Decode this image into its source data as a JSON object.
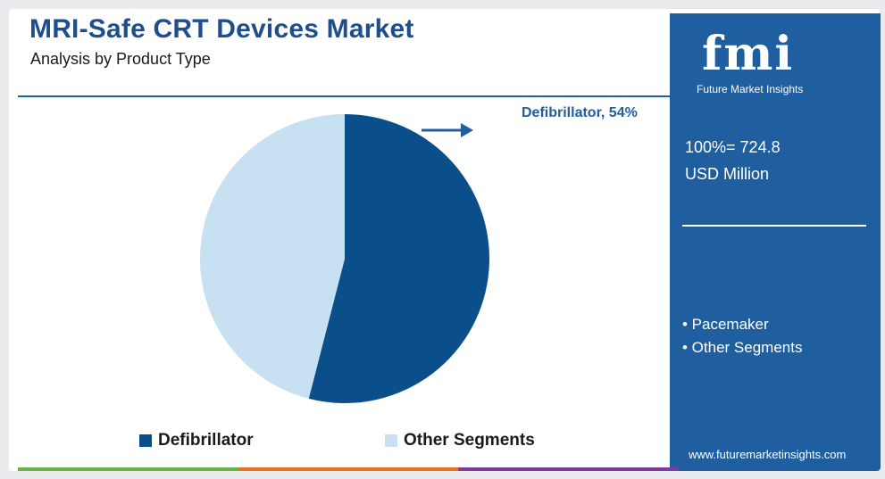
{
  "header": {
    "title": "MRI-Safe CRT Devices Market",
    "subtitle": "Analysis by Product Type"
  },
  "chart_data": {
    "type": "pie",
    "title": "MRI-Safe CRT Devices Market",
    "subtitle": "Analysis by Product Type",
    "slices": [
      {
        "label": "Defibrillator",
        "value": 54,
        "color": "#0b4f8a"
      },
      {
        "label": "Other Segments",
        "value": 46,
        "color": "#c8e1f2"
      }
    ],
    "annotation": "Defibrillator, 54%",
    "legend_position": "bottom"
  },
  "legend": [
    {
      "label": "Defibrillator",
      "color": "#0b4f8a"
    },
    {
      "label": "Other Segments",
      "color": "#c8e1f2"
    }
  ],
  "sidebar": {
    "logo_text": "fmi",
    "logo_subtext": "Future Market Insights",
    "total_line1": "100%= 724.8",
    "total_line2": "USD Million",
    "segments": [
      "• Pacemaker",
      "• Other Segments"
    ],
    "url": "www.futuremarketinsights.com"
  },
  "colors": {
    "brand_blue": "#1f5fa0",
    "title_blue": "#1f4e8c",
    "bar_green": "#6ab04c",
    "bar_orange": "#e8702a",
    "bar_purple": "#7d3c98"
  }
}
